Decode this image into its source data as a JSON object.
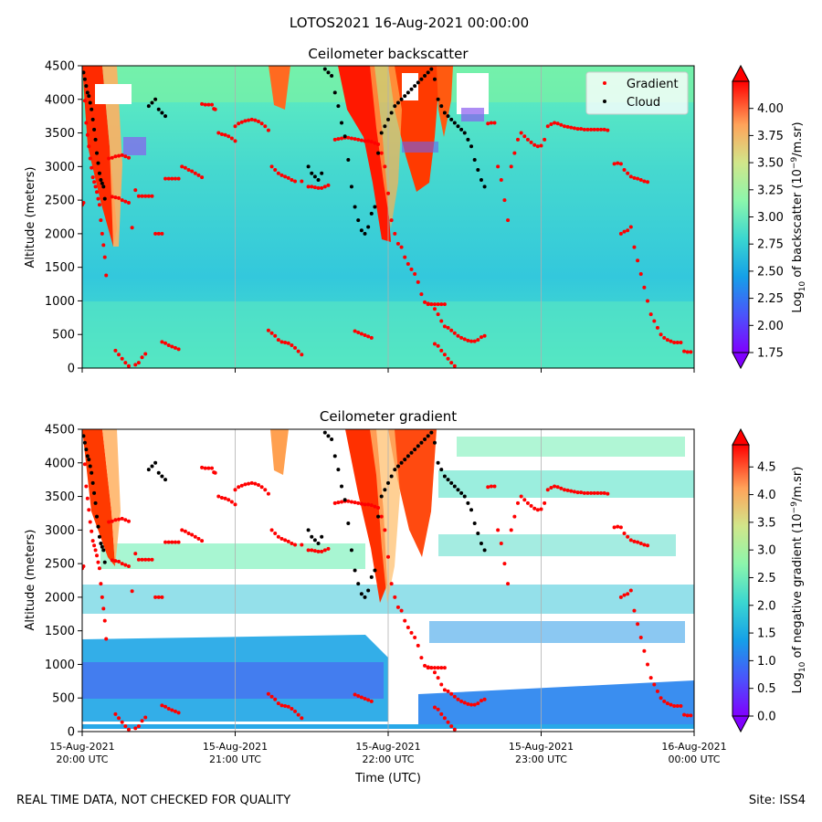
{
  "figure": {
    "suptitle": "LOTOS2021 16-Aug-2021 00:00:00",
    "footer_left": "REAL TIME DATA, NOT CHECKED FOR QUALITY",
    "footer_right": "Site: ISS4"
  },
  "chart_data": [
    {
      "type": "heatmap",
      "title": "Ceilometer backscatter",
      "xlabel": "",
      "ylabel": "Altitude (meters)",
      "ylim": [
        0,
        4500
      ],
      "y_ticks": [
        "0",
        "500",
        "1000",
        "1500",
        "2000",
        "2500",
        "3000",
        "3500",
        "4000",
        "4500"
      ],
      "x_range": [
        "15-Aug-2021 20:00 UTC",
        "16-Aug-2021 00:00 UTC"
      ],
      "x_ticks": [
        {
          "date": "15-Aug-2021",
          "time": "20:00 UTC"
        },
        {
          "date": "15-Aug-2021",
          "time": "21:00 UTC"
        },
        {
          "date": "15-Aug-2021",
          "time": "22:00 UTC"
        },
        {
          "date": "15-Aug-2021",
          "time": "23:00 UTC"
        },
        {
          "date": "16-Aug-2021",
          "time": "00:00 UTC"
        }
      ],
      "x_tick_labels_shown": false,
      "grid_x": true,
      "legend": {
        "placement": "top-right",
        "entries": [
          {
            "label": "Gradient",
            "color": "#ff0000"
          },
          {
            "label": "Cloud",
            "color": "#000000"
          }
        ]
      },
      "colorbar": {
        "label_main": "Log",
        "label_sub": "10",
        "label_mid": " of backscatter (10",
        "label_sup": "−9",
        "label_end": "/m.sr)",
        "range": [
          1.75,
          4.25
        ],
        "ticks": [
          "1.75",
          "2.00",
          "2.25",
          "2.50",
          "2.75",
          "3.00",
          "3.25",
          "3.50",
          "3.75",
          "4.00"
        ],
        "extend": "both",
        "colormap": "rainbow"
      }
    },
    {
      "type": "heatmap",
      "title": "Ceilometer gradient",
      "xlabel": "Time (UTC)",
      "ylabel": "Altitude (meters)",
      "ylim": [
        0,
        4500
      ],
      "y_ticks": [
        "0",
        "500",
        "1000",
        "1500",
        "2000",
        "2500",
        "3000",
        "3500",
        "4000",
        "4500"
      ],
      "x_range": [
        "15-Aug-2021 20:00 UTC",
        "16-Aug-2021 00:00 UTC"
      ],
      "x_ticks": [
        {
          "date": "15-Aug-2021",
          "time": "20:00 UTC"
        },
        {
          "date": "15-Aug-2021",
          "time": "21:00 UTC"
        },
        {
          "date": "15-Aug-2021",
          "time": "22:00 UTC"
        },
        {
          "date": "15-Aug-2021",
          "time": "23:00 UTC"
        },
        {
          "date": "16-Aug-2021",
          "time": "00:00 UTC"
        }
      ],
      "x_tick_labels_shown": true,
      "grid_x": true,
      "colorbar": {
        "label_main": "Log",
        "label_sub": "10",
        "label_mid": " of negative gradient (10",
        "label_sup": "−9",
        "label_end": "/m.sr)",
        "range": [
          0.0,
          4.9
        ],
        "ticks": [
          "0.0",
          "0.5",
          "1.0",
          "1.5",
          "2.0",
          "2.5",
          "3.0",
          "3.5",
          "4.0",
          "4.5"
        ],
        "extend": "both",
        "colormap": "rainbow"
      }
    }
  ],
  "gradient_series": {
    "name": "Gradient",
    "points": [
      [
        0.0,
        2430
      ],
      [
        0.02,
        2460
      ],
      [
        0.04,
        3980
      ],
      [
        0.06,
        3650
      ],
      [
        0.08,
        3470
      ],
      [
        0.1,
        3300
      ],
      [
        0.12,
        3120
      ],
      [
        0.14,
        2980
      ],
      [
        0.16,
        2840
      ],
      [
        0.18,
        2770
      ],
      [
        0.2,
        2700
      ],
      [
        0.22,
        2620
      ],
      [
        0.24,
        2520
      ],
      [
        0.26,
        2430
      ],
      [
        0.28,
        2200
      ],
      [
        0.3,
        2000
      ],
      [
        0.32,
        1830
      ],
      [
        0.34,
        1650
      ],
      [
        0.36,
        1380
      ],
      [
        0.4,
        3120
      ],
      [
        0.45,
        3130
      ],
      [
        0.5,
        3150
      ],
      [
        0.55,
        3160
      ],
      [
        0.6,
        3170
      ],
      [
        0.65,
        3150
      ],
      [
        0.7,
        3130
      ],
      [
        0.45,
        2550
      ],
      [
        0.5,
        2540
      ],
      [
        0.55,
        2530
      ],
      [
        0.6,
        2500
      ],
      [
        0.65,
        2480
      ],
      [
        0.7,
        2460
      ],
      [
        0.75,
        2090
      ],
      [
        0.8,
        2650
      ],
      [
        0.85,
        2560
      ],
      [
        0.9,
        2560
      ],
      [
        0.95,
        2560
      ],
      [
        1.0,
        2560
      ],
      [
        1.05,
        2560
      ],
      [
        1.1,
        2000
      ],
      [
        1.15,
        2000
      ],
      [
        1.2,
        2000
      ],
      [
        1.25,
        2820
      ],
      [
        1.3,
        2820
      ],
      [
        1.35,
        2820
      ],
      [
        1.4,
        2820
      ],
      [
        1.45,
        2820
      ],
      [
        1.5,
        3000
      ],
      [
        1.55,
        2980
      ],
      [
        1.6,
        2950
      ],
      [
        1.65,
        2930
      ],
      [
        1.7,
        2900
      ],
      [
        1.75,
        2870
      ],
      [
        1.8,
        2840
      ],
      [
        1.8,
        3930
      ],
      [
        1.85,
        3920
      ],
      [
        1.9,
        3920
      ],
      [
        1.95,
        3920
      ],
      [
        1.98,
        3860
      ],
      [
        2.0,
        3850
      ],
      [
        2.05,
        3500
      ],
      [
        2.1,
        3480
      ],
      [
        2.15,
        3470
      ],
      [
        2.2,
        3450
      ],
      [
        2.25,
        3420
      ],
      [
        2.3,
        3380
      ],
      [
        2.3,
        3600
      ],
      [
        2.35,
        3640
      ],
      [
        2.4,
        3660
      ],
      [
        2.45,
        3680
      ],
      [
        2.5,
        3690
      ],
      [
        2.55,
        3700
      ],
      [
        2.6,
        3690
      ],
      [
        2.65,
        3670
      ],
      [
        2.7,
        3640
      ],
      [
        2.75,
        3600
      ],
      [
        2.8,
        3540
      ],
      [
        2.85,
        3000
      ],
      [
        2.9,
        2950
      ],
      [
        2.95,
        2900
      ],
      [
        3.0,
        2870
      ],
      [
        3.05,
        2850
      ],
      [
        3.1,
        2830
      ],
      [
        3.15,
        2800
      ],
      [
        3.2,
        2780
      ],
      [
        3.3,
        2780
      ],
      [
        3.4,
        2700
      ],
      [
        3.45,
        2700
      ],
      [
        3.5,
        2690
      ],
      [
        3.55,
        2680
      ],
      [
        3.6,
        2680
      ],
      [
        3.65,
        2700
      ],
      [
        3.7,
        2720
      ],
      [
        3.8,
        3400
      ],
      [
        3.85,
        3410
      ],
      [
        3.9,
        3420
      ],
      [
        3.95,
        3430
      ],
      [
        4.0,
        3430
      ],
      [
        4.05,
        3420
      ],
      [
        4.1,
        3410
      ],
      [
        4.15,
        3400
      ],
      [
        4.2,
        3390
      ],
      [
        4.25,
        3380
      ],
      [
        4.3,
        3380
      ],
      [
        4.35,
        3370
      ],
      [
        4.4,
        3350
      ],
      [
        4.45,
        3330
      ],
      [
        4.5,
        3200
      ],
      [
        4.55,
        3000
      ],
      [
        4.6,
        2600
      ],
      [
        4.65,
        2200
      ],
      [
        4.7,
        2000
      ],
      [
        4.75,
        1850
      ],
      [
        4.8,
        1800
      ],
      [
        4.85,
        1650
      ],
      [
        4.9,
        1550
      ],
      [
        4.95,
        1470
      ],
      [
        5.0,
        1400
      ],
      [
        5.05,
        1280
      ],
      [
        5.1,
        1100
      ],
      [
        5.15,
        980
      ],
      [
        5.2,
        960
      ],
      [
        5.25,
        950
      ],
      [
        5.3,
        880
      ],
      [
        5.35,
        800
      ],
      [
        5.4,
        700
      ],
      [
        5.45,
        620
      ],
      [
        5.5,
        600
      ],
      [
        5.55,
        560
      ],
      [
        5.6,
        520
      ],
      [
        5.65,
        480
      ],
      [
        5.7,
        450
      ],
      [
        5.75,
        430
      ],
      [
        5.8,
        410
      ],
      [
        5.85,
        400
      ],
      [
        5.9,
        400
      ],
      [
        5.95,
        420
      ],
      [
        6.0,
        460
      ],
      [
        6.05,
        480
      ],
      [
        6.1,
        3640
      ],
      [
        6.15,
        3650
      ],
      [
        6.2,
        3650
      ],
      [
        6.25,
        3000
      ],
      [
        6.3,
        2800
      ],
      [
        6.35,
        2500
      ],
      [
        6.4,
        2200
      ],
      [
        6.45,
        3000
      ],
      [
        6.5,
        3200
      ],
      [
        6.55,
        3400
      ],
      [
        6.6,
        3500
      ],
      [
        6.65,
        3450
      ],
      [
        6.7,
        3400
      ],
      [
        6.75,
        3360
      ],
      [
        6.8,
        3320
      ],
      [
        6.85,
        3300
      ],
      [
        6.9,
        3310
      ],
      [
        6.95,
        3400
      ],
      [
        7.0,
        3600
      ],
      [
        7.05,
        3630
      ],
      [
        7.1,
        3650
      ],
      [
        7.15,
        3640
      ],
      [
        7.2,
        3620
      ],
      [
        7.25,
        3600
      ],
      [
        7.3,
        3590
      ],
      [
        7.35,
        3580
      ],
      [
        7.4,
        3570
      ],
      [
        7.45,
        3560
      ],
      [
        7.5,
        3560
      ],
      [
        7.55,
        3550
      ],
      [
        7.6,
        3550
      ],
      [
        7.65,
        3550
      ],
      [
        7.7,
        3550
      ],
      [
        7.75,
        3550
      ],
      [
        7.8,
        3550
      ],
      [
        7.85,
        3550
      ],
      [
        7.9,
        3540
      ],
      [
        8.0,
        3040
      ],
      [
        8.05,
        3050
      ],
      [
        8.1,
        3040
      ],
      [
        8.15,
        2950
      ],
      [
        8.2,
        2900
      ],
      [
        8.25,
        2850
      ],
      [
        8.3,
        2830
      ],
      [
        8.35,
        2820
      ],
      [
        8.4,
        2800
      ],
      [
        8.45,
        2780
      ],
      [
        8.5,
        2770
      ],
      [
        8.1,
        2000
      ],
      [
        8.15,
        2030
      ],
      [
        8.2,
        2050
      ],
      [
        8.25,
        2100
      ],
      [
        8.3,
        1800
      ],
      [
        8.35,
        1600
      ],
      [
        8.4,
        1400
      ],
      [
        8.45,
        1200
      ],
      [
        8.5,
        1000
      ],
      [
        8.55,
        800
      ],
      [
        8.6,
        700
      ],
      [
        8.65,
        600
      ],
      [
        8.7,
        500
      ],
      [
        8.75,
        450
      ],
      [
        8.8,
        420
      ],
      [
        8.85,
        400
      ],
      [
        8.9,
        380
      ],
      [
        8.95,
        380
      ],
      [
        9.0,
        380
      ],
      [
        9.05,
        250
      ],
      [
        9.1,
        240
      ],
      [
        9.15,
        240
      ],
      [
        2.8,
        560
      ],
      [
        2.85,
        520
      ],
      [
        2.9,
        480
      ],
      [
        2.95,
        420
      ],
      [
        3.0,
        390
      ],
      [
        3.05,
        380
      ],
      [
        3.1,
        370
      ],
      [
        3.15,
        340
      ],
      [
        3.2,
        300
      ],
      [
        3.25,
        250
      ],
      [
        3.3,
        200
      ],
      [
        4.1,
        550
      ],
      [
        4.15,
        530
      ],
      [
        4.2,
        510
      ],
      [
        4.25,
        490
      ],
      [
        4.3,
        470
      ],
      [
        4.35,
        450
      ],
      [
        1.2,
        390
      ],
      [
        1.25,
        370
      ],
      [
        1.3,
        340
      ],
      [
        1.35,
        320
      ],
      [
        1.4,
        300
      ],
      [
        1.45,
        280
      ],
      [
        0.5,
        260
      ],
      [
        0.55,
        200
      ],
      [
        0.6,
        140
      ],
      [
        0.65,
        80
      ],
      [
        0.7,
        30
      ],
      [
        0.8,
        50
      ],
      [
        0.85,
        80
      ],
      [
        0.9,
        160
      ],
      [
        0.95,
        210
      ],
      [
        5.3,
        360
      ],
      [
        5.35,
        330
      ],
      [
        5.4,
        260
      ],
      [
        5.45,
        200
      ],
      [
        5.5,
        140
      ],
      [
        5.55,
        80
      ],
      [
        5.6,
        30
      ],
      [
        5.2,
        950
      ],
      [
        5.25,
        950
      ],
      [
        5.3,
        950
      ],
      [
        5.35,
        950
      ],
      [
        5.4,
        950
      ],
      [
        5.45,
        950
      ]
    ]
  },
  "cloud_series": {
    "name": "Cloud",
    "points": [
      [
        0.02,
        4400
      ],
      [
        0.04,
        4300
      ],
      [
        0.06,
        4200
      ],
      [
        0.08,
        4100
      ],
      [
        0.1,
        4050
      ],
      [
        0.12,
        3950
      ],
      [
        0.14,
        3850
      ],
      [
        0.16,
        3700
      ],
      [
        0.18,
        3550
      ],
      [
        0.2,
        3400
      ],
      [
        0.22,
        3200
      ],
      [
        0.24,
        3050
      ],
      [
        0.26,
        2900
      ],
      [
        0.28,
        2800
      ],
      [
        0.3,
        2750
      ],
      [
        0.32,
        2700
      ],
      [
        0.34,
        2520
      ],
      [
        1.0,
        3900
      ],
      [
        1.05,
        3950
      ],
      [
        1.1,
        4000
      ],
      [
        1.15,
        3850
      ],
      [
        1.2,
        3800
      ],
      [
        1.25,
        3750
      ],
      [
        3.4,
        3000
      ],
      [
        3.45,
        2900
      ],
      [
        3.5,
        2850
      ],
      [
        3.55,
        2800
      ],
      [
        3.6,
        2900
      ],
      [
        3.65,
        4450
      ],
      [
        3.7,
        4400
      ],
      [
        3.75,
        4350
      ],
      [
        3.8,
        4100
      ],
      [
        3.85,
        3900
      ],
      [
        3.9,
        3650
      ],
      [
        3.95,
        3450
      ],
      [
        4.0,
        3100
      ],
      [
        4.05,
        2700
      ],
      [
        4.1,
        2400
      ],
      [
        4.15,
        2200
      ],
      [
        4.2,
        2050
      ],
      [
        4.25,
        2000
      ],
      [
        4.3,
        2100
      ],
      [
        4.35,
        2300
      ],
      [
        4.4,
        2400
      ],
      [
        4.45,
        3200
      ],
      [
        4.5,
        3500
      ],
      [
        4.55,
        3600
      ],
      [
        4.6,
        3700
      ],
      [
        4.65,
        3800
      ],
      [
        4.7,
        3900
      ],
      [
        4.75,
        3950
      ],
      [
        4.8,
        4000
      ],
      [
        4.85,
        4050
      ],
      [
        4.9,
        4100
      ],
      [
        4.95,
        4150
      ],
      [
        5.0,
        4200
      ],
      [
        5.05,
        4250
      ],
      [
        5.1,
        4300
      ],
      [
        5.15,
        4350
      ],
      [
        5.2,
        4400
      ],
      [
        5.25,
        4450
      ],
      [
        5.3,
        4300
      ],
      [
        5.35,
        4000
      ],
      [
        5.4,
        3900
      ],
      [
        5.45,
        3800
      ],
      [
        5.5,
        3750
      ],
      [
        5.55,
        3700
      ],
      [
        5.6,
        3650
      ],
      [
        5.65,
        3600
      ],
      [
        5.7,
        3550
      ],
      [
        5.75,
        3500
      ],
      [
        5.8,
        3400
      ],
      [
        5.85,
        3300
      ],
      [
        5.9,
        3100
      ],
      [
        5.95,
        2950
      ],
      [
        6.0,
        2800
      ],
      [
        6.05,
        2700
      ]
    ]
  }
}
